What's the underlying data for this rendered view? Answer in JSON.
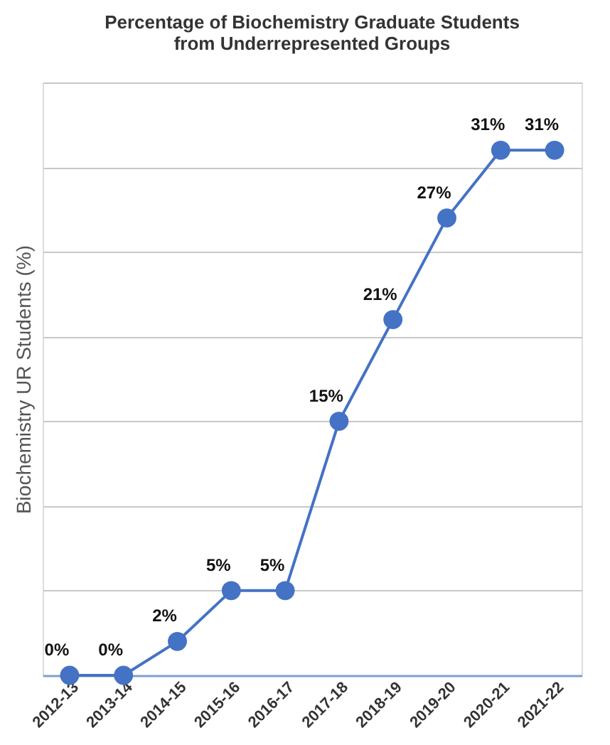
{
  "chart_data": {
    "type": "line",
    "title": [
      "Percentage of Biochemistry Graduate Students",
      "from Underrepresented Groups"
    ],
    "ylabel": "Biochemistry UR Students (%)",
    "categories": [
      "2012-13",
      "2013-14",
      "2014-15",
      "2015-16",
      "2016-17",
      "2017-18",
      "2018-19",
      "2019-20",
      "2020-21",
      "2021-22"
    ],
    "series": [
      {
        "color": "#4472c4",
        "values": [
          0,
          0,
          2,
          5,
          5,
          15,
          21,
          27,
          31,
          31
        ],
        "value_labels": [
          "0%",
          "0%",
          "2%",
          "5%",
          "5%",
          "15%",
          "21%",
          "27%",
          "31%",
          "31%"
        ]
      }
    ],
    "ylim": [
      0,
      35
    ],
    "yticks": [
      {
        "value": 0,
        "label": null
      },
      {
        "value": 5,
        "label": null
      },
      {
        "value": 10,
        "label": null
      },
      {
        "value": 15,
        "label": null
      },
      {
        "value": 20,
        "label": null
      },
      {
        "value": 25,
        "label": null
      },
      {
        "value": 30,
        "label": null
      },
      {
        "value": 35,
        "label": null
      }
    ],
    "grid": "y",
    "marker": "circle",
    "line_style": "solid",
    "legend": false
  }
}
